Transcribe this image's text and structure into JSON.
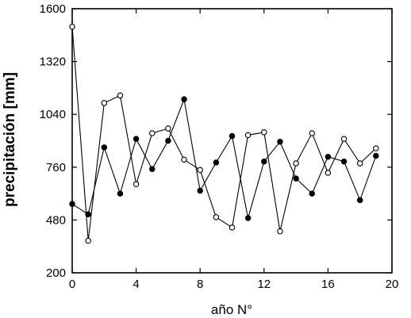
{
  "chart_data": {
    "type": "line",
    "xlabel": "año N°",
    "ylabel": "precipitación [mm]",
    "xlim": [
      0,
      20
    ],
    "ylim": [
      200,
      1600
    ],
    "xticks": [
      0,
      4,
      8,
      12,
      16,
      20
    ],
    "yticks": [
      200,
      480,
      760,
      1040,
      1320,
      1600
    ],
    "grid": false,
    "legend": "none",
    "series": [
      {
        "marker": "filled-circle",
        "x": [
          0,
          1,
          2,
          3,
          4,
          5,
          6,
          7,
          8,
          9,
          10,
          11,
          12,
          13,
          14,
          15,
          16,
          17,
          18,
          19
        ],
        "values": [
          565,
          510,
          865,
          620,
          910,
          750,
          900,
          1120,
          635,
          785,
          925,
          490,
          790,
          895,
          700,
          620,
          815,
          790,
          585,
          820
        ]
      },
      {
        "marker": "open-circle",
        "x": [
          0,
          1,
          2,
          3,
          4,
          5,
          6,
          7,
          8,
          9,
          10,
          11,
          12,
          13,
          14,
          15,
          16,
          17,
          18,
          19
        ],
        "values": [
          1505,
          370,
          1100,
          1140,
          670,
          940,
          965,
          800,
          745,
          495,
          440,
          930,
          945,
          420,
          780,
          940,
          730,
          910,
          780,
          860
        ]
      }
    ]
  }
}
